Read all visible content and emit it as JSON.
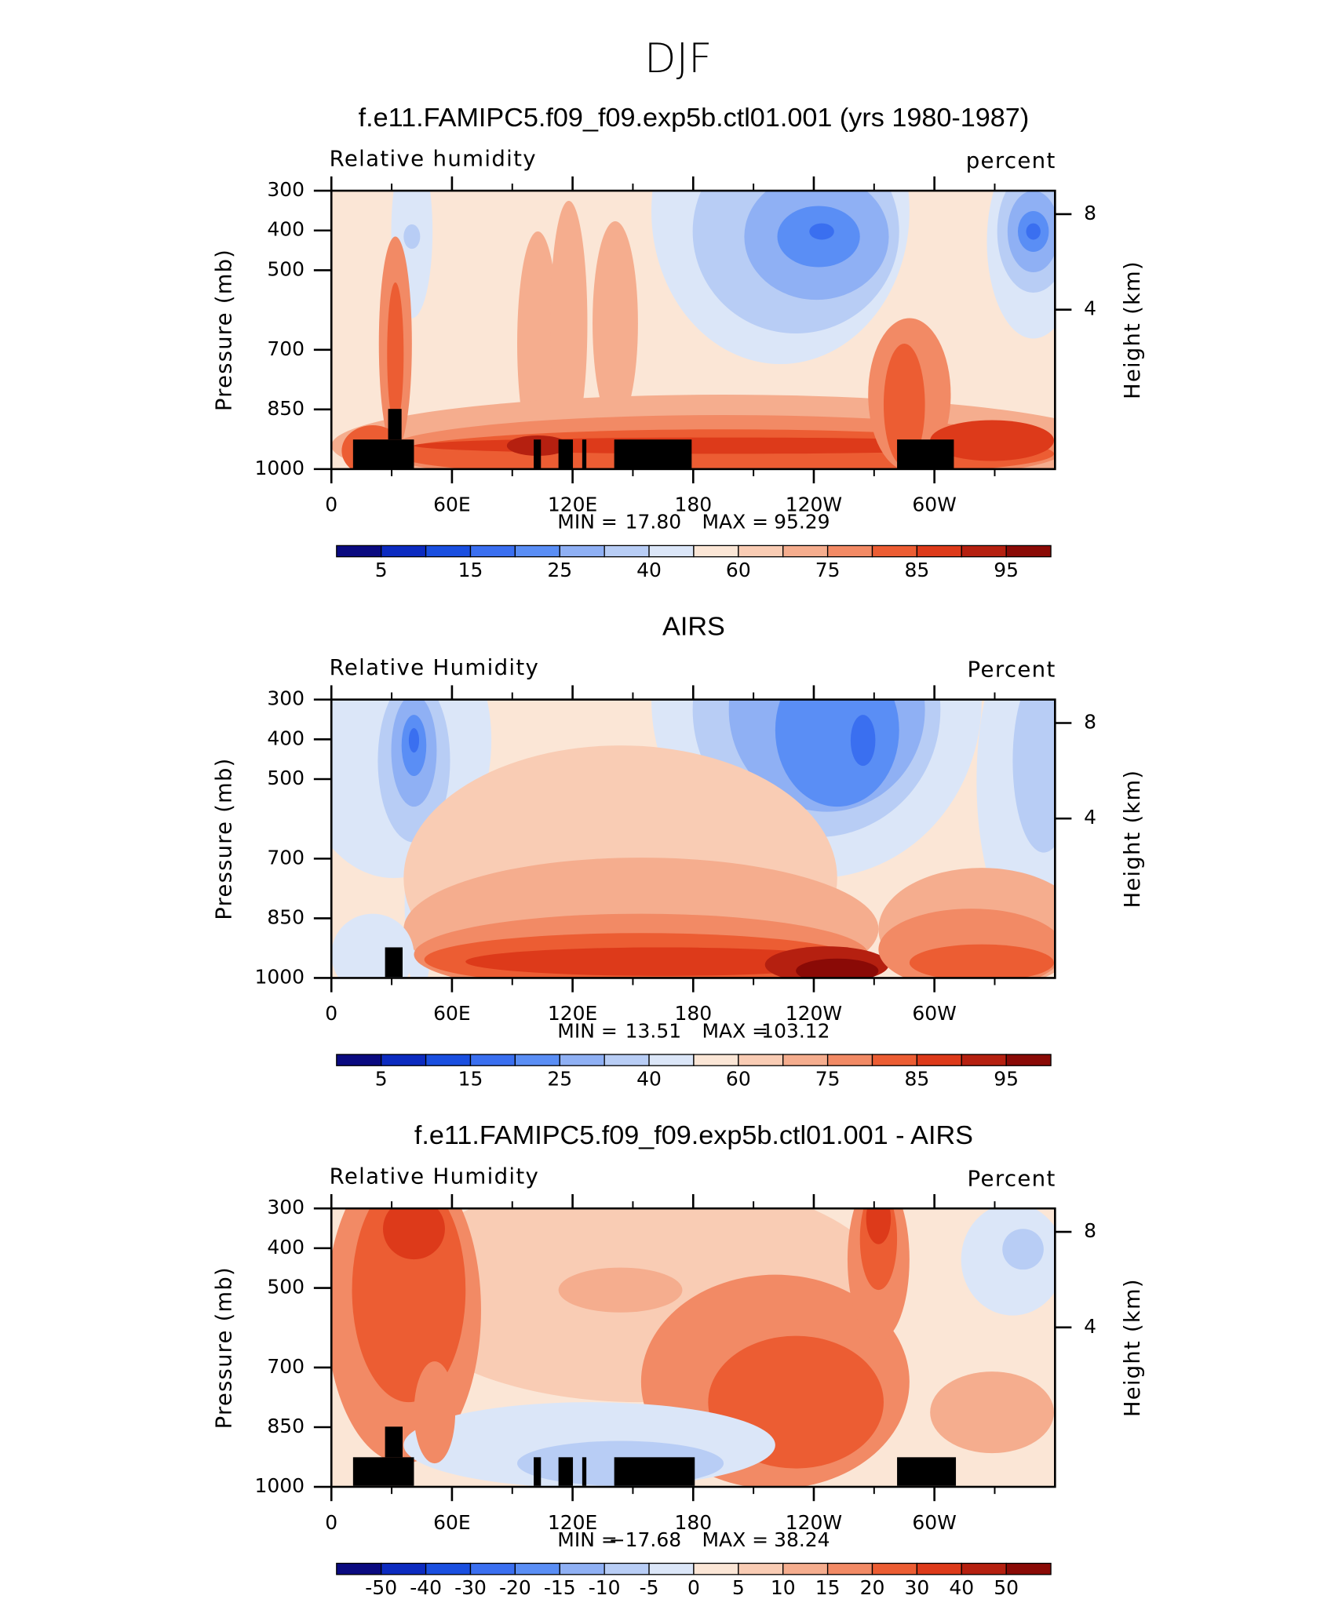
{
  "title": "DJF",
  "chart_data": [
    {
      "type": "contour",
      "title": "f.e11.FAMIPC5.f09_f09.exp5b.ctl01.001 (yrs 1980-1987)",
      "left_label": "Relative humidity",
      "right_label": "percent",
      "ylabel": "Pressure (mb)",
      "y2label": "Height (km)",
      "xlim": [
        0,
        360
      ],
      "xticks": [
        0,
        {
          "value": 60,
          "label": "60E"
        },
        {
          "value": 120,
          "label": "120E"
        },
        180,
        {
          "value": 240,
          "label": "120W"
        },
        {
          "value": 300,
          "label": "60W"
        }
      ],
      "ylim": [
        1000,
        300
      ],
      "yticks": [
        300,
        400,
        500,
        700,
        850,
        1000
      ],
      "y2lim": [
        0,
        9.4
      ],
      "y2ticks": [
        4,
        8
      ],
      "min_label": "MIN =",
      "min": "17.80",
      "max_label": "MAX =",
      "max": "95.29",
      "colorbar_ticks": [
        5,
        15,
        25,
        40,
        60,
        75,
        85,
        95
      ],
      "colors": [
        "#0a0a80",
        "#0c2bc0",
        "#1a4fe0",
        "#3a6ff0",
        "#5a8ef5",
        "#8fb0f4",
        "#b8cdf5",
        "#dbe6f8",
        "#fbe6d6",
        "#f9ccb4",
        "#f5ad8e",
        "#f28a65",
        "#ec5d33",
        "#dd3a1a",
        "#b52010",
        "#8a0a06"
      ]
    },
    {
      "type": "contour",
      "title": "AIRS",
      "left_label": "Relative Humidity",
      "right_label": "Percent",
      "ylabel": "Pressure (mb)",
      "y2label": "Height (km)",
      "xlim": [
        0,
        360
      ],
      "xticks": [
        0,
        {
          "value": 60,
          "label": "60E"
        },
        {
          "value": 120,
          "label": "120E"
        },
        180,
        {
          "value": 240,
          "label": "120W"
        },
        {
          "value": 300,
          "label": "60W"
        }
      ],
      "ylim": [
        1000,
        300
      ],
      "yticks": [
        300,
        400,
        500,
        700,
        850,
        1000
      ],
      "y2lim": [
        0,
        9.4
      ],
      "y2ticks": [
        4,
        8
      ],
      "min_label": "MIN =",
      "min": "13.51",
      "max_label": "MAX =",
      "max": "103.12",
      "colorbar_ticks": [
        5,
        15,
        25,
        40,
        60,
        75,
        85,
        95
      ],
      "colors": [
        "#0a0a80",
        "#0c2bc0",
        "#1a4fe0",
        "#3a6ff0",
        "#5a8ef5",
        "#8fb0f4",
        "#b8cdf5",
        "#dbe6f8",
        "#fbe6d6",
        "#f9ccb4",
        "#f5ad8e",
        "#f28a65",
        "#ec5d33",
        "#dd3a1a",
        "#b52010",
        "#8a0a06"
      ]
    },
    {
      "type": "contour",
      "title": "f.e11.FAMIPC5.f09_f09.exp5b.ctl01.001 - AIRS",
      "left_label": "Relative Humidity",
      "right_label": "Percent",
      "ylabel": "Pressure (mb)",
      "y2label": "Height (km)",
      "xlim": [
        0,
        360
      ],
      "xticks": [
        0,
        {
          "value": 60,
          "label": "60E"
        },
        {
          "value": 120,
          "label": "120E"
        },
        180,
        {
          "value": 240,
          "label": "120W"
        },
        {
          "value": 300,
          "label": "60W"
        }
      ],
      "ylim": [
        1000,
        300
      ],
      "yticks": [
        300,
        400,
        500,
        700,
        850,
        1000
      ],
      "y2lim": [
        0,
        9.4
      ],
      "y2ticks": [
        4,
        8
      ],
      "min_label": "MIN =",
      "min": "−17.68",
      "max_label": "MAX =",
      "max": "38.24",
      "colorbar_ticks": [
        -50,
        -40,
        -30,
        -20,
        -15,
        -10,
        -5,
        0,
        5,
        10,
        15,
        20,
        30,
        40,
        50
      ],
      "colors": [
        "#0a0a80",
        "#0c2bc0",
        "#1a4fe0",
        "#3a6ff0",
        "#5a8ef5",
        "#8fb0f4",
        "#b8cdf5",
        "#dbe6f8",
        "#fbe6d6",
        "#f9ccb4",
        "#f5ad8e",
        "#f28a65",
        "#ec5d33",
        "#dd3a1a",
        "#b52010",
        "#8a0a06"
      ]
    }
  ]
}
